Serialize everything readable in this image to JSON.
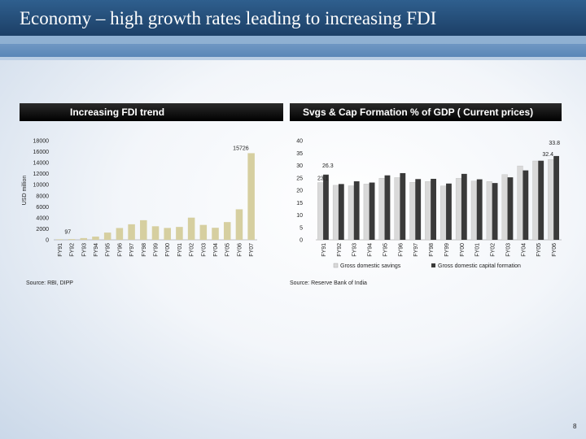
{
  "slide": {
    "title": "Economy – high growth rates leading to increasing FDI",
    "page_number": "8"
  },
  "left_panel": {
    "header": "Increasing FDI trend",
    "source": "Source: RBI, DIPP"
  },
  "right_panel": {
    "header": "Svgs & Cap Formation % of GDP ( Current prices)",
    "source": "Source: Reserve Bank of India"
  },
  "colors": {
    "bar_fdi": "#d6cfa0",
    "savings": "#d9d9d9",
    "capital": "#3a3a3a"
  },
  "chart_data": [
    {
      "type": "bar",
      "title": "Increasing FDI trend",
      "ylabel": "USD million",
      "xlabel": "",
      "ylim": [
        0,
        18000
      ],
      "yticks": [
        0,
        2000,
        4000,
        6000,
        8000,
        10000,
        12000,
        14000,
        16000,
        18000
      ],
      "categories": [
        "FY91",
        "FY92",
        "FY93",
        "FY94",
        "FY95",
        "FY96",
        "FY97",
        "FY98",
        "FY99",
        "FY00",
        "FY01",
        "FY02",
        "FY03",
        "FY04",
        "FY05",
        "FY06",
        "FY07"
      ],
      "values": [
        97,
        129,
        315,
        586,
        1314,
        2144,
        2821,
        3557,
        2462,
        2155,
        2339,
        4029,
        2705,
        2188,
        3219,
        5540,
        15726
      ],
      "data_labels": [
        {
          "index": 0,
          "text": "97"
        },
        {
          "index": 16,
          "text": "15726"
        }
      ]
    },
    {
      "type": "bar",
      "title": "Svgs & Cap Formation % of GDP ( Current prices)",
      "xlabel": "",
      "ylabel": "",
      "ylim": [
        0,
        40
      ],
      "yticks": [
        0,
        5,
        10,
        15,
        20,
        25,
        30,
        35,
        40
      ],
      "categories": [
        "FY91",
        "FY92",
        "FY93",
        "FY94",
        "FY95",
        "FY96",
        "FY97",
        "FY98",
        "FY99",
        "FY00",
        "FY01",
        "FY02",
        "FY03",
        "FY04",
        "FY05",
        "FY06"
      ],
      "series": [
        {
          "name": "Gross domestic savings",
          "values": [
            23.1,
            22.0,
            21.8,
            22.5,
            24.8,
            25.1,
            23.2,
            23.5,
            21.7,
            24.8,
            23.7,
            23.5,
            26.3,
            29.8,
            31.8,
            32.4
          ]
        },
        {
          "name": "Gross domestic capital formation",
          "values": [
            26.3,
            22.5,
            23.6,
            23.1,
            26.0,
            26.9,
            24.5,
            24.6,
            22.7,
            26.6,
            24.4,
            22.9,
            25.2,
            28.0,
            31.9,
            33.8
          ]
        }
      ],
      "data_labels": [
        "23.1",
        "26.3",
        "32.4",
        "33.8"
      ]
    }
  ]
}
